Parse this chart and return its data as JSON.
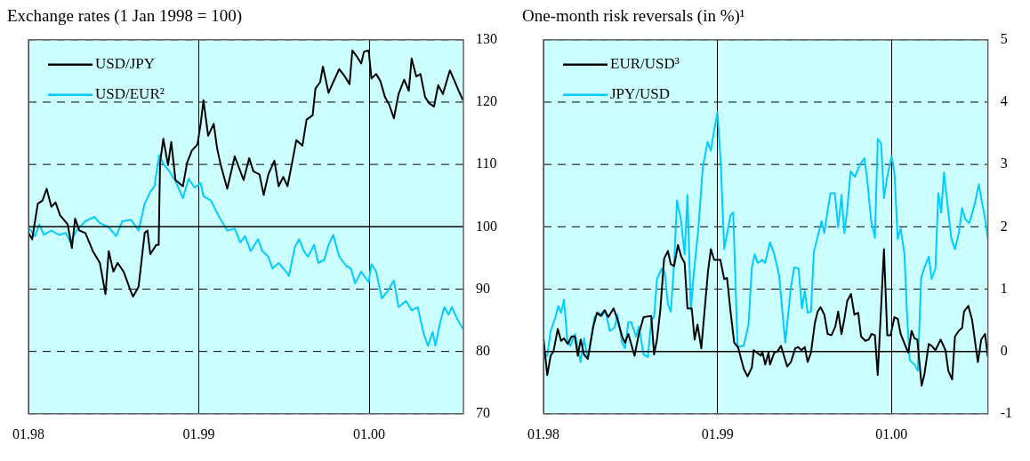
{
  "chart_data": [
    {
      "type": "line",
      "title": "Exchange rates (1 Jan 1998 = 100)",
      "xlim": [
        "1998-01-01",
        "2000-07-21"
      ],
      "xticks": [
        {
          "value": "1998-01-01",
          "label": "01.98"
        },
        {
          "value": "1999-01-01",
          "label": "01.99"
        },
        {
          "value": "2000-01-01",
          "label": "01.00"
        }
      ],
      "ylim": [
        70,
        130
      ],
      "yticks": [
        70,
        80,
        90,
        100,
        110,
        120,
        130
      ],
      "grid": true,
      "legend": "top left",
      "ref_lines": [
        {
          "axis": "y",
          "value": 100,
          "color": "#000000"
        }
      ],
      "series": [
        {
          "name": "USD/JPY",
          "color": "#000000",
          "x": [
            "1998-01-01",
            "1998-01-09",
            "1998-01-21",
            "1998-01-31",
            "1998-02-09",
            "1998-02-19",
            "1998-02-28",
            "1998-03-10",
            "1998-03-26",
            "1998-04-04",
            "1998-04-11",
            "1998-04-20",
            "1998-05-03",
            "1998-05-19",
            "1998-06-03",
            "1998-06-15",
            "1998-06-22",
            "1998-07-02",
            "1998-07-11",
            "1998-07-24",
            "1998-08-09",
            "1998-08-13",
            "1998-08-25",
            "1998-09-07",
            "1998-09-13",
            "1998-09-19",
            "1998-10-02",
            "1998-10-07",
            "1998-10-10",
            "1998-10-17",
            "1998-10-27",
            "1998-11-03",
            "1998-11-12",
            "1998-11-28",
            "1998-12-07",
            "1998-12-17",
            "1998-12-29",
            "1999-01-05",
            "1999-01-11",
            "1999-01-21",
            "1999-02-02",
            "1999-02-09",
            "1999-02-17",
            "1999-03-03",
            "1999-03-19",
            "1999-04-07",
            "1999-04-10",
            "1999-04-19",
            "1999-04-28",
            "1999-05-11",
            "1999-05-20",
            "1999-05-30",
            "1999-06-12",
            "1999-06-21",
            "1999-07-01",
            "1999-07-10",
            "1999-07-20",
            "1999-07-29",
            "1999-08-11",
            "1999-08-20",
            "1999-09-02",
            "1999-09-08",
            "1999-09-18",
            "1999-09-24",
            "1999-10-06",
            "1999-10-16",
            "1999-10-29",
            "1999-11-10",
            "1999-11-20",
            "1999-11-26",
            "1999-12-05",
            "1999-12-15",
            "1999-12-21",
            "1999-12-31",
            "2000-01-06",
            "2000-01-16",
            "2000-01-25",
            "2000-02-04",
            "2000-02-13",
            "2000-02-23",
            "2000-03-04",
            "2000-03-16",
            "2000-03-26",
            "2000-04-01",
            "2000-04-11",
            "2000-04-20",
            "2000-04-30",
            "2000-05-09",
            "2000-05-19",
            "2000-05-28",
            "2000-06-07",
            "2000-06-22",
            "2000-07-02",
            "2000-07-11",
            "2000-07-20"
          ],
          "values": [
            99.0,
            98.0,
            103.7,
            104.2,
            106.1,
            103.2,
            103.9,
            101.8,
            100.4,
            96.6,
            101.3,
            99.4,
            99.0,
            96.1,
            94.2,
            89.2,
            96.1,
            92.8,
            94.2,
            92.8,
            89.5,
            88.8,
            90.4,
            99.0,
            99.4,
            95.6,
            97.1,
            97.1,
            110.3,
            114.1,
            109.9,
            113.6,
            107.5,
            106.5,
            110.3,
            112.2,
            113.2,
            116.5,
            120.3,
            114.6,
            116.5,
            112.7,
            109.9,
            106.1,
            111.3,
            107.5,
            108.4,
            111.0,
            108.9,
            108.4,
            105.1,
            108.4,
            110.6,
            106.5,
            108.0,
            106.5,
            110.3,
            113.9,
            113.0,
            117.2,
            117.9,
            122.2,
            123.2,
            125.7,
            121.5,
            123.2,
            125.3,
            124.1,
            122.9,
            128.3,
            127.4,
            126.2,
            128.1,
            128.3,
            123.8,
            124.5,
            123.4,
            120.8,
            119.6,
            117.4,
            121.3,
            123.6,
            121.8,
            127.0,
            124.1,
            124.5,
            120.8,
            119.8,
            119.3,
            122.7,
            121.3,
            125.1,
            123.4,
            121.8,
            120.3
          ]
        },
        {
          "name": "USD/EUR²",
          "color": "#00ccff",
          "x": [
            "1998-01-01",
            "1998-01-15",
            "1998-01-24",
            "1998-02-03",
            "1998-02-19",
            "1998-03-07",
            "1998-03-22",
            "1998-04-01",
            "1998-04-14",
            "1998-05-03",
            "1998-05-22",
            "1998-06-03",
            "1998-06-22",
            "1998-07-08",
            "1998-07-21",
            "1998-08-09",
            "1998-08-25",
            "1998-09-07",
            "1998-09-19",
            "1998-09-28",
            "1998-10-08",
            "1998-10-17",
            "1998-10-30",
            "1998-11-12",
            "1998-11-28",
            "1998-12-10",
            "1998-12-23",
            "1999-01-05",
            "1999-01-11",
            "1999-01-27",
            "1999-02-12",
            "1999-03-03",
            "1999-03-19",
            "1999-03-31",
            "1999-04-10",
            "1999-04-22",
            "1999-05-08",
            "1999-05-17",
            "1999-05-30",
            "1999-06-08",
            "1999-06-21",
            "1999-07-07",
            "1999-07-13",
            "1999-07-26",
            "1999-08-04",
            "1999-08-14",
            "1999-08-23",
            "1999-09-05",
            "1999-09-14",
            "1999-09-27",
            "1999-10-06",
            "1999-10-16",
            "1999-10-29",
            "1999-11-13",
            "1999-11-23",
            "1999-12-02",
            "1999-12-15",
            "1999-12-31",
            "2000-01-06",
            "2000-01-16",
            "2000-01-28",
            "2000-02-10",
            "2000-02-23",
            "2000-03-04",
            "2000-03-20",
            "2000-04-01",
            "2000-04-14",
            "2000-04-27",
            "2000-05-06",
            "2000-05-16",
            "2000-05-22",
            "2000-05-31",
            "2000-06-10",
            "2000-06-19",
            "2000-06-26",
            "2000-07-08",
            "2000-07-20"
          ],
          "values": [
            99.9,
            98.5,
            100.4,
            98.7,
            99.4,
            98.7,
            99.0,
            97.5,
            99.4,
            100.9,
            101.6,
            100.6,
            99.9,
            98.5,
            100.9,
            101.1,
            99.4,
            103.7,
            105.6,
            106.5,
            111.5,
            110.1,
            108.9,
            107.3,
            104.6,
            107.7,
            106.3,
            107.0,
            104.9,
            104.2,
            101.8,
            99.4,
            99.7,
            97.5,
            98.5,
            96.1,
            98.0,
            96.1,
            95.2,
            93.3,
            94.2,
            92.8,
            92.1,
            96.8,
            98.0,
            96.1,
            95.2,
            97.1,
            94.2,
            94.7,
            97.1,
            98.7,
            95.2,
            93.7,
            93.3,
            90.9,
            92.8,
            91.1,
            94.0,
            92.8,
            88.5,
            89.7,
            91.4,
            87.1,
            88.1,
            86.6,
            87.1,
            82.8,
            80.9,
            83.1,
            80.9,
            84.3,
            87.1,
            85.9,
            87.1,
            85.2,
            83.6
          ]
        }
      ]
    },
    {
      "type": "line",
      "title": "One-month risk reversals (in %)¹",
      "xlim": [
        "1998-01-01",
        "2000-07-21"
      ],
      "xticks": [
        {
          "value": "1998-01-01",
          "label": "01.98"
        },
        {
          "value": "1999-01-01",
          "label": "01.99"
        },
        {
          "value": "2000-01-01",
          "label": "01.00"
        }
      ],
      "ylim": [
        -1,
        5
      ],
      "yticks": [
        -1,
        0,
        1,
        2,
        3,
        4,
        5
      ],
      "grid": true,
      "legend": "top left",
      "ref_lines": [
        {
          "axis": "y",
          "value": 0,
          "color": "#000000"
        }
      ],
      "series": [
        {
          "name": "EUR/USD³",
          "color": "#000000",
          "x": [
            "1998-01-01",
            "1998-01-09",
            "1998-01-16",
            "1998-01-22",
            "1998-01-31",
            "1998-02-07",
            "1998-02-13",
            "1998-02-21",
            "1998-03-01",
            "1998-03-08",
            "1998-03-14",
            "1998-03-20",
            "1998-03-27",
            "1998-04-04",
            "1998-04-15",
            "1998-04-23",
            "1998-05-01",
            "1998-05-09",
            "1998-05-17",
            "1998-05-28",
            "1998-06-05",
            "1998-06-15",
            "1998-06-21",
            "1998-06-28",
            "1998-07-11",
            "1998-07-20",
            "1998-07-30",
            "1998-08-15",
            "1998-08-21",
            "1998-08-27",
            "1998-09-03",
            "1998-09-11",
            "1998-09-19",
            "1998-09-25",
            "1998-10-02",
            "1998-10-10",
            "1998-10-17",
            "1998-10-24",
            "1998-10-30",
            "1998-11-08",
            "1998-11-14",
            "1998-11-20",
            "1998-11-28",
            "1998-12-12",
            "1998-12-18",
            "1998-12-25",
            "1999-01-07",
            "1999-01-15",
            "1999-01-21",
            "1999-01-28",
            "1999-02-05",
            "1999-02-13",
            "1999-02-25",
            "1999-03-05",
            "1999-03-14",
            "1999-03-18",
            "1999-04-02",
            "1999-04-05",
            "1999-04-11",
            "1999-04-18",
            "1999-04-21",
            "1999-04-30",
            "1999-05-07",
            "1999-05-14",
            "1999-05-27",
            "1999-06-04",
            "1999-06-13",
            "1999-06-19",
            "1999-06-26",
            "1999-07-03",
            "1999-07-09",
            "1999-07-16",
            "1999-07-24",
            "1999-07-30",
            "1999-08-05",
            "1999-08-13",
            "1999-08-20",
            "1999-08-28",
            "1999-09-05",
            "1999-09-11",
            "1999-09-18",
            "1999-09-24",
            "1999-09-30",
            "1999-10-08",
            "1999-10-15",
            "1999-10-23",
            "1999-10-29",
            "1999-11-07",
            "1999-11-14",
            "1999-11-20",
            "1999-11-27",
            "1999-12-03",
            "1999-12-11",
            "1999-12-16",
            "1999-12-23",
            "1999-12-30",
            "2000-01-07",
            "2000-01-14",
            "2000-01-20",
            "2000-01-30",
            "2000-02-05",
            "2000-02-12",
            "2000-02-18",
            "2000-02-24",
            "2000-03-04",
            "2000-03-10",
            "2000-03-19",
            "2000-03-25",
            "2000-04-02",
            "2000-04-13",
            "2000-04-23",
            "2000-04-29",
            "2000-05-07",
            "2000-05-13",
            "2000-05-21",
            "2000-05-28",
            "2000-06-01",
            "2000-06-10",
            "2000-06-18",
            "2000-06-30",
            "2000-07-07",
            "2000-07-15",
            "2000-07-21"
          ],
          "values": [
            0.21,
            -0.38,
            -0.07,
            0,
            0.36,
            0.17,
            0.21,
            0.12,
            0.24,
            0.24,
            -0.07,
            0.19,
            -0.05,
            -0.12,
            0.38,
            0.62,
            0.57,
            0.66,
            0.55,
            0.69,
            0.52,
            0.24,
            0.14,
            0.28,
            -0.07,
            0.28,
            0.55,
            0.57,
            -0.05,
            0.19,
            0.66,
            1.49,
            1.61,
            1.4,
            1.37,
            1.71,
            1.52,
            1.42,
            0.69,
            0.69,
            0.19,
            0.43,
            0.05,
            1.28,
            1.64,
            1.47,
            1.47,
            1.16,
            1.18,
            0.66,
            0.14,
            0.07,
            -0.28,
            -0.4,
            -0.26,
            0.02,
            -0.07,
            0,
            -0.21,
            -0.02,
            -0.21,
            -0.02,
            0,
            0.09,
            -0.24,
            -0.17,
            0.05,
            0.07,
            0.02,
            0.07,
            -0.17,
            -0.02,
            0.45,
            0.64,
            0.71,
            0.59,
            0.28,
            0.26,
            0.4,
            0.64,
            0.28,
            0.52,
            0.81,
            0.92,
            0.59,
            0.62,
            0.24,
            0.17,
            0.19,
            0.28,
            0.26,
            -0.38,
            0.85,
            1.64,
            0.26,
            0.26,
            0.55,
            0.52,
            0.28,
            0.09,
            -0.02,
            0.33,
            0.21,
            0.19,
            -0.55,
            -0.36,
            0.12,
            0.09,
            0.02,
            0.19,
            0.02,
            -0.31,
            -0.45,
            0.24,
            0.33,
            0.38,
            0.64,
            0.73,
            0.5,
            -0.17,
            0.19,
            0.28,
            -0.09
          ]
        },
        {
          "name": "JPY/USD",
          "color": "#00ccff",
          "x": [
            "1998-01-01",
            "1998-01-09",
            "1998-01-16",
            "1998-01-25",
            "1998-02-01",
            "1998-02-07",
            "1998-02-13",
            "1998-02-20",
            "1998-02-26",
            "1998-03-08",
            "1998-03-20",
            "1998-03-27",
            "1998-04-04",
            "1998-04-18",
            "1998-04-28",
            "1998-05-04",
            "1998-05-11",
            "1998-05-20",
            "1998-05-30",
            "1998-06-05",
            "1998-06-15",
            "1998-06-21",
            "1998-06-28",
            "1998-07-04",
            "1998-07-14",
            "1998-07-20",
            "1998-07-30",
            "1998-08-08",
            "1998-08-15",
            "1998-08-21",
            "1998-08-27",
            "1998-09-06",
            "1998-09-12",
            "1998-09-19",
            "1998-09-25",
            "1998-10-02",
            "1998-10-08",
            "1998-10-16",
            "1998-10-24",
            "1998-10-30",
            "1998-11-06",
            "1998-11-12",
            "1998-11-22",
            "1998-12-01",
            "1998-12-11",
            "1998-12-18",
            "1998-12-25",
            "1999-01-01",
            "1999-01-08",
            "1999-01-15",
            "1999-01-28",
            "1999-02-03",
            "1999-02-12",
            "1999-02-25",
            "1999-03-07",
            "1999-03-14",
            "1999-03-20",
            "1999-03-26",
            "1999-04-02",
            "1999-04-05",
            "1999-04-11",
            "1999-04-21",
            "1999-04-30",
            "1999-05-10",
            "1999-05-23",
            "1999-06-04",
            "1999-06-11",
            "1999-06-20",
            "1999-06-27",
            "1999-07-03",
            "1999-07-09",
            "1999-07-16",
            "1999-07-22",
            "1999-08-01",
            "1999-08-07",
            "1999-08-13",
            "1999-08-20",
            "1999-08-26",
            "1999-09-04",
            "1999-09-11",
            "1999-09-18",
            "1999-09-24",
            "1999-09-30",
            "1999-10-07",
            "1999-10-16",
            "1999-10-26",
            "1999-11-05",
            "1999-11-11",
            "1999-11-19",
            "1999-11-27",
            "1999-12-03",
            "1999-12-10",
            "1999-12-16",
            "1999-12-23",
            "2000-01-01",
            "2000-01-07",
            "2000-01-14",
            "2000-01-20",
            "2000-01-28",
            "2000-02-02",
            "2000-02-08",
            "2000-02-18",
            "2000-02-25",
            "2000-03-03",
            "2000-03-09",
            "2000-03-19",
            "2000-03-25",
            "2000-04-02",
            "2000-04-08",
            "2000-04-14",
            "2000-04-20",
            "2000-05-05",
            "2000-05-13",
            "2000-05-21",
            "2000-05-28",
            "2000-06-03",
            "2000-06-12",
            "2000-06-22",
            "2000-07-02",
            "2000-07-08",
            "2000-07-15",
            "2000-07-21"
          ],
          "values": [
            -0.05,
            -0.07,
            0.33,
            0.52,
            0.73,
            0.62,
            0.83,
            0.19,
            0.09,
            0.28,
            -0.17,
            0.21,
            -0.12,
            0.55,
            0.62,
            0.57,
            0.66,
            0.33,
            0.38,
            0.59,
            0.14,
            0.05,
            0.47,
            0.47,
            0.24,
            0.4,
            -0.05,
            -0.09,
            0.5,
            0.55,
            1.16,
            1.33,
            1.28,
            0.76,
            0.64,
            1.4,
            2.42,
            2.13,
            1.56,
            2.51,
            0.66,
            1.23,
            1.99,
            2.94,
            3.36,
            3.22,
            3.55,
            3.84,
            2.99,
            1.64,
            2.18,
            2.23,
            0.07,
            0.09,
            0.43,
            1.35,
            1.56,
            1.42,
            1.45,
            1.47,
            1.42,
            1.75,
            1.56,
            1.23,
            0.14,
            1.04,
            1.35,
            1.33,
            0.69,
            0.97,
            0.62,
            0.64,
            1.59,
            1.9,
            2.09,
            1.9,
            2.27,
            2.54,
            2.54,
            1.99,
            2.51,
            1.9,
            2.27,
            2.89,
            2.8,
            2.99,
            3.1,
            2.75,
            2.11,
            1.82,
            3.41,
            3.34,
            2.46,
            2.8,
            3.13,
            2.87,
            1.8,
            1.97,
            1.56,
            0.66,
            -0.14,
            -0.21,
            -0.31,
            1.18,
            1.33,
            1.52,
            1.16,
            1.33,
            2.54,
            2.23,
            2.87,
            1.82,
            1.64,
            1.9,
            2.3,
            2.13,
            2.06,
            2.32,
            2.68,
            2.42,
            2.13,
            1.8
          ]
        }
      ]
    }
  ]
}
